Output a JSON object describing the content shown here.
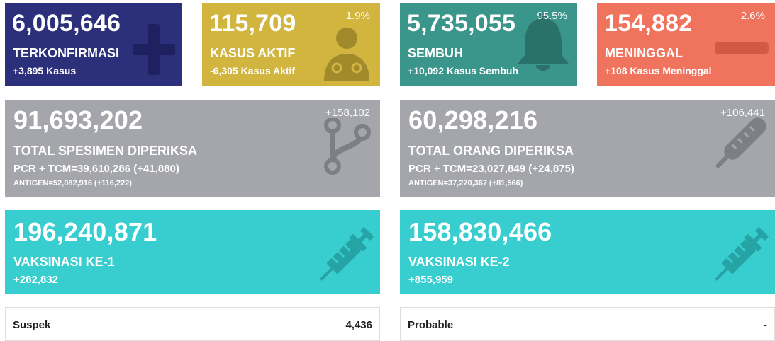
{
  "colors": {
    "confirmed": "#2c307a",
    "active": "#d1b53e",
    "recovered": "#3a958a",
    "deaths": "#ef735d",
    "tests": "#a5a6ac",
    "vaccine": "#38cdcf"
  },
  "cases": {
    "confirmed": {
      "value": "6,005,646",
      "label": "TERKONFIRMASI",
      "delta": "+3,895 Kasus",
      "icon": "plus-icon"
    },
    "active": {
      "value": "115,709",
      "label": "KASUS AKTIF",
      "delta": "-6,305 Kasus Aktif",
      "percent": "1.9%",
      "icon": "doctor-icon"
    },
    "recovered": {
      "value": "5,735,055",
      "label": "SEMBUH",
      "delta": "+10,092 Kasus Sembuh",
      "percent": "95.5%",
      "icon": "bell-icon"
    },
    "deaths": {
      "value": "154,882",
      "label": "MENINGGAL",
      "delta": "+108 Kasus Meninggal",
      "percent": "2.6%",
      "icon": "minus-icon"
    }
  },
  "tests": {
    "specimens": {
      "value": "91,693,202",
      "delta": "+158,102",
      "label": "TOTAL SPESIMEN DIPERIKSA",
      "pcr": "PCR + TCM=39,610,286 (+41,880)",
      "antigen": "ANTIGEN=52,082,916 (+116,222)",
      "icon": "branch-icon"
    },
    "people": {
      "value": "60,298,216",
      "delta": "+106,441",
      "label": "TOTAL ORANG DIPERIKSA",
      "pcr": "PCR + TCM=23,027,849 (+24,875)",
      "antigen": "ANTIGEN=37,270,367 (+81,566)",
      "icon": "thermometer-icon"
    }
  },
  "vaccines": {
    "dose1": {
      "value": "196,240,871",
      "label": "VAKSINASI KE-1",
      "delta": "+282,832",
      "icon": "syringe-icon"
    },
    "dose2": {
      "value": "158,830,466",
      "label": "VAKSINASI KE-2",
      "delta": "+855,959",
      "icon": "syringe-icon"
    }
  },
  "extra": {
    "suspect": {
      "label": "Suspek",
      "value": "4,436"
    },
    "probable": {
      "label": "Probable",
      "value": "-"
    }
  }
}
